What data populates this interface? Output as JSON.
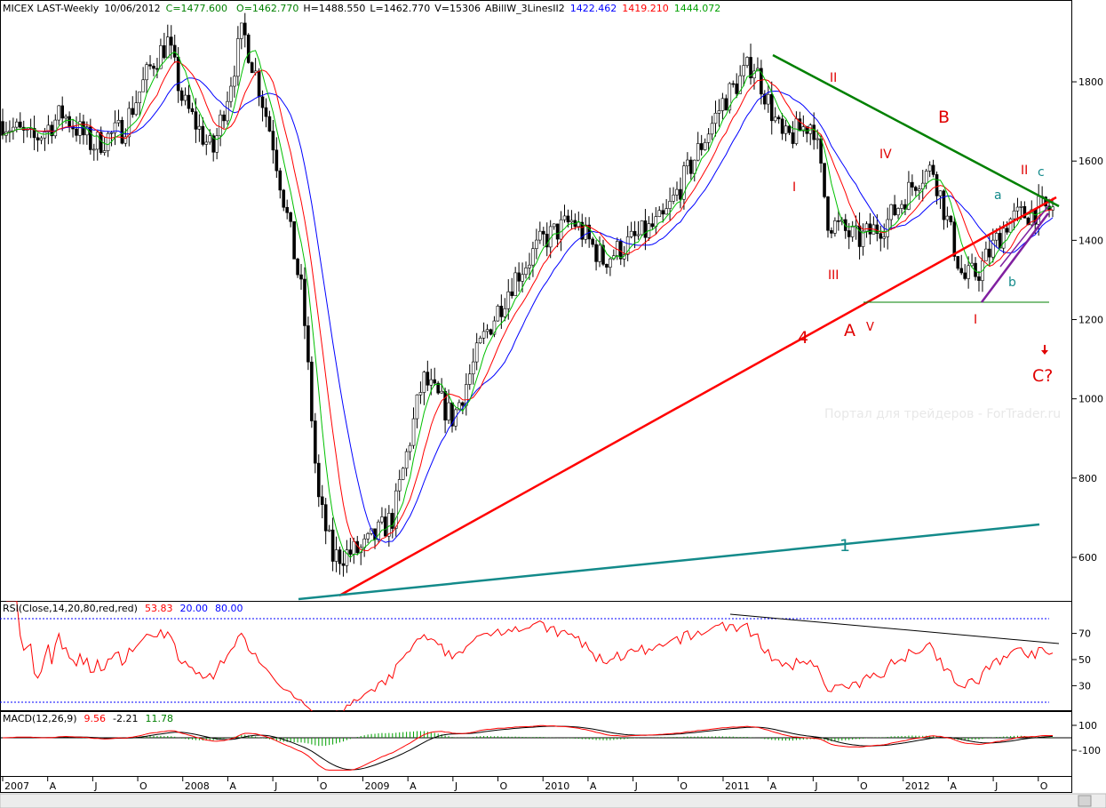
{
  "header": {
    "symbol": "MICEX LAST-Weekly",
    "date": "10/06/2012",
    "close": "C=1477.600",
    "open": "O=1462.770",
    "high": "H=1488.550",
    "low": "L=1462.770",
    "volume": "V=15306",
    "indicator": "ABillW_3LinesII2",
    "v_blue": "1422.462",
    "v_red": "1419.210",
    "v_green": "1444.072"
  },
  "watermark": "Портал для трейдеров - ForTrader.ru",
  "colors": {
    "blue": "#0000ff",
    "red": "#ff0000",
    "green": "#00c000",
    "dark_green": "#008000",
    "teal": "#138a8a",
    "purple": "#8020a0",
    "black": "#000000"
  },
  "price_axis": {
    "ticks": [
      600,
      800,
      1000,
      1200,
      1400,
      1600,
      1800
    ],
    "range": [
      480,
      1980
    ]
  },
  "time_axis": {
    "labels": [
      "2007",
      "A",
      "J",
      "O",
      "2008",
      "A",
      "J",
      "O",
      "2009",
      "A",
      "J",
      "O",
      "2010",
      "A",
      "J",
      "O",
      "2011",
      "A",
      "J",
      "O",
      "2012",
      "A",
      "J",
      "O"
    ]
  },
  "chart_data": [
    {
      "type": "candlestick",
      "title": "MICEX LAST-Weekly",
      "ylim": [
        480,
        1980
      ],
      "x_range": [
        "2007-01",
        "2012-10"
      ],
      "series_close_approx": [
        {
          "date": "2007-01",
          "value": 1700
        },
        {
          "date": "2007-03",
          "value": 1650
        },
        {
          "date": "2007-05",
          "value": 1720
        },
        {
          "date": "2007-07",
          "value": 1640
        },
        {
          "date": "2007-09",
          "value": 1680
        },
        {
          "date": "2007-11",
          "value": 1850
        },
        {
          "date": "2007-12",
          "value": 1900
        },
        {
          "date": "2008-01",
          "value": 1750
        },
        {
          "date": "2008-03",
          "value": 1620
        },
        {
          "date": "2008-05",
          "value": 1930
        },
        {
          "date": "2008-06",
          "value": 1800
        },
        {
          "date": "2008-07",
          "value": 1650
        },
        {
          "date": "2008-08",
          "value": 1450
        },
        {
          "date": "2008-09",
          "value": 1250
        },
        {
          "date": "2008-10",
          "value": 750
        },
        {
          "date": "2008-11",
          "value": 600
        },
        {
          "date": "2009-01",
          "value": 620
        },
        {
          "date": "2009-03",
          "value": 700
        },
        {
          "date": "2009-05",
          "value": 1050
        },
        {
          "date": "2009-07",
          "value": 950
        },
        {
          "date": "2009-09",
          "value": 1150
        },
        {
          "date": "2009-11",
          "value": 1300
        },
        {
          "date": "2010-01",
          "value": 1400
        },
        {
          "date": "2010-03",
          "value": 1450
        },
        {
          "date": "2010-05",
          "value": 1350
        },
        {
          "date": "2010-07",
          "value": 1400
        },
        {
          "date": "2010-09",
          "value": 1450
        },
        {
          "date": "2010-11",
          "value": 1600
        },
        {
          "date": "2011-01",
          "value": 1750
        },
        {
          "date": "2011-03",
          "value": 1850
        },
        {
          "date": "2011-05",
          "value": 1650
        },
        {
          "date": "2011-07",
          "value": 1700
        },
        {
          "date": "2011-08",
          "value": 1450
        },
        {
          "date": "2011-10",
          "value": 1400
        },
        {
          "date": "2011-12",
          "value": 1450
        },
        {
          "date": "2012-02",
          "value": 1560
        },
        {
          "date": "2012-03",
          "value": 1580
        },
        {
          "date": "2012-05",
          "value": 1300
        },
        {
          "date": "2012-06",
          "value": 1320
        },
        {
          "date": "2012-08",
          "value": 1450
        },
        {
          "date": "2012-10",
          "value": 1478
        }
      ],
      "annotations": [
        "II",
        "I",
        "III",
        "IV",
        "B",
        "A",
        "V",
        "4",
        "II",
        "c",
        "a",
        "b",
        "I",
        "C?",
        "1"
      ],
      "trendlines": [
        {
          "name": "red-trendline-4",
          "color": "red",
          "from": {
            "date": "2008-11",
            "value": 500
          },
          "to": {
            "date": "2012-10",
            "value": 1510
          }
        },
        {
          "name": "green-resistance",
          "color": "dark_green",
          "from": {
            "date": "2011-03",
            "value": 1865
          },
          "to": {
            "date": "2012-10",
            "value": 1490
          }
        },
        {
          "name": "teal-trendline-1",
          "color": "teal",
          "from": {
            "date": "2008-10",
            "value": 495
          },
          "to": {
            "date": "2012-09",
            "value": 685
          }
        },
        {
          "name": "green-support",
          "color": "dark_green",
          "from": {
            "date": "2011-10",
            "value": 1245
          },
          "to": {
            "date": "2012-09",
            "value": 1245
          }
        }
      ]
    },
    {
      "type": "line",
      "title": "RSI(Close,14,20,80,red,red)",
      "legend": [
        "53.83",
        "20.00",
        "80.00"
      ],
      "ylim": [
        10,
        90
      ],
      "ticks": [
        30,
        50,
        70
      ]
    },
    {
      "type": "line",
      "title": "MACD(12,26,9)",
      "legend": [
        "9.56",
        "-2.21",
        "11.78"
      ],
      "ticks": [
        100,
        -100
      ]
    }
  ]
}
